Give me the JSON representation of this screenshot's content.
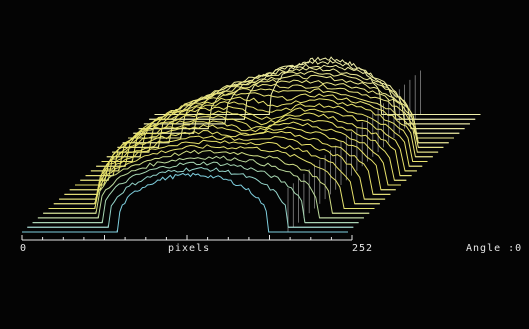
{
  "axis": {
    "min_label": "0",
    "unit_label": "pixels",
    "max_label": "252",
    "angle_label": "Angle :0"
  },
  "colors": {
    "background": "#040404",
    "axis": "#e6e6e6",
    "baseline": "#f2f2f2",
    "contour_warm": "#e8e26a",
    "contour_pale": "#f0f0b0",
    "contour_cool": "#7fd0e0"
  }
}
